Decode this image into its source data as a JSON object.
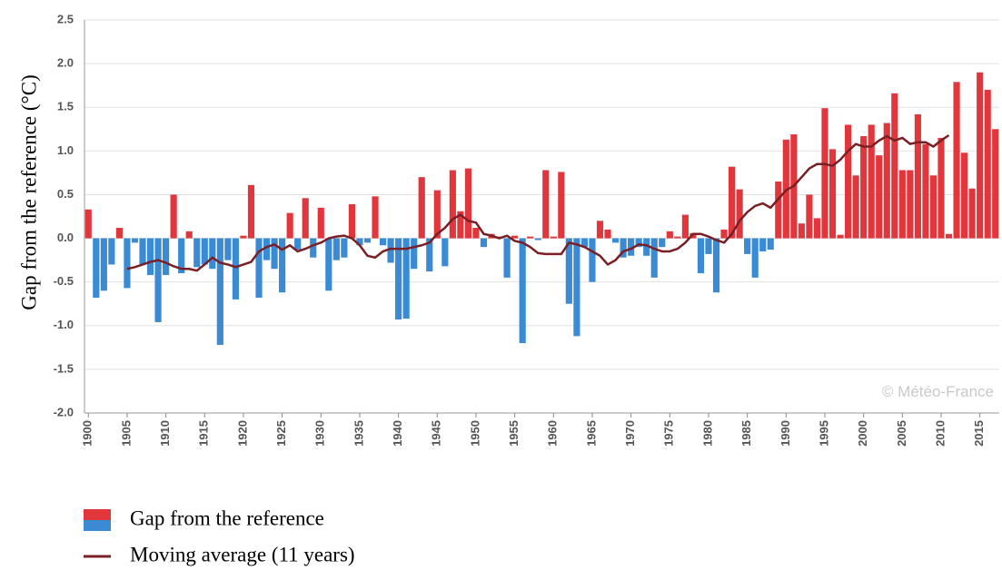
{
  "chart_data": {
    "type": "bar",
    "y_label": "Gap from the reference (°C)",
    "watermark": "© Météo-France",
    "x": [
      1900,
      1901,
      1902,
      1903,
      1904,
      1905,
      1906,
      1907,
      1908,
      1909,
      1910,
      1911,
      1912,
      1913,
      1914,
      1915,
      1916,
      1917,
      1918,
      1919,
      1920,
      1921,
      1922,
      1923,
      1924,
      1925,
      1926,
      1927,
      1928,
      1929,
      1930,
      1931,
      1932,
      1933,
      1934,
      1935,
      1936,
      1937,
      1938,
      1939,
      1940,
      1941,
      1942,
      1943,
      1944,
      1945,
      1946,
      1947,
      1948,
      1949,
      1950,
      1951,
      1952,
      1953,
      1954,
      1955,
      1956,
      1957,
      1958,
      1959,
      1960,
      1961,
      1962,
      1963,
      1964,
      1965,
      1966,
      1967,
      1968,
      1969,
      1970,
      1971,
      1972,
      1973,
      1974,
      1975,
      1976,
      1977,
      1978,
      1979,
      1980,
      1981,
      1982,
      1983,
      1984,
      1985,
      1986,
      1987,
      1988,
      1989,
      1990,
      1991,
      1992,
      1993,
      1994,
      1995,
      1996,
      1997,
      1998,
      1999,
      2000,
      2001,
      2002,
      2003,
      2004,
      2005,
      2006,
      2007,
      2008,
      2009,
      2010,
      2011,
      2012,
      2013,
      2014,
      2015,
      2016,
      2017
    ],
    "series": [
      {
        "name": "Gap from the reference",
        "type": "bar",
        "color": "#e0363c",
        "negative_color": "#3a8ad4",
        "values": [
          0.33,
          -0.68,
          -0.6,
          -0.3,
          0.12,
          -0.57,
          -0.05,
          -0.3,
          -0.42,
          -0.96,
          -0.42,
          0.5,
          -0.4,
          0.08,
          -0.33,
          -0.3,
          -0.35,
          -1.22,
          -0.25,
          -0.7,
          0.03,
          0.61,
          -0.68,
          -0.25,
          -0.35,
          -0.62,
          0.29,
          -0.13,
          0.46,
          -0.22,
          0.35,
          -0.6,
          -0.25,
          -0.22,
          0.39,
          -0.08,
          -0.05,
          0.48,
          -0.08,
          -0.28,
          -0.93,
          -0.92,
          -0.35,
          0.7,
          -0.38,
          0.55,
          -0.32,
          0.78,
          0.31,
          0.8,
          0.12,
          -0.1,
          0.05,
          0.02,
          -0.45,
          0.03,
          -1.2,
          0.02,
          -0.02,
          0.78,
          0.02,
          0.76,
          -0.75,
          -1.12,
          -0.1,
          -0.5,
          0.2,
          0.1,
          -0.05,
          -0.22,
          -0.2,
          -0.1,
          -0.2,
          -0.45,
          -0.1,
          0.08,
          0.02,
          0.27,
          0.06,
          -0.4,
          -0.18,
          -0.62,
          0.1,
          0.82,
          0.56,
          -0.18,
          -0.45,
          -0.15,
          -0.13,
          0.65,
          1.13,
          1.19,
          0.17,
          0.5,
          0.23,
          1.49,
          1.02,
          0.04,
          1.3,
          0.72,
          1.17,
          1.3,
          0.95,
          1.32,
          1.66,
          0.78,
          0.78,
          1.42,
          1.08,
          0.72,
          1.15,
          0.05,
          1.79,
          0.98,
          0.57,
          1.9,
          1.7,
          1.25
        ]
      },
      {
        "name": "Moving average (11 years)",
        "type": "line",
        "color": "#7a1f24",
        "values": [
          null,
          null,
          null,
          null,
          null,
          -0.35,
          -0.33,
          -0.3,
          -0.27,
          -0.25,
          -0.28,
          -0.32,
          -0.35,
          -0.35,
          -0.37,
          -0.3,
          -0.22,
          -0.28,
          -0.3,
          -0.33,
          -0.3,
          -0.27,
          -0.15,
          -0.1,
          -0.07,
          -0.13,
          -0.08,
          -0.15,
          -0.12,
          -0.08,
          -0.05,
          0.0,
          0.02,
          0.03,
          0.0,
          -0.08,
          -0.2,
          -0.22,
          -0.15,
          -0.12,
          -0.12,
          -0.12,
          -0.1,
          -0.08,
          -0.05,
          0.05,
          0.12,
          0.22,
          0.27,
          0.2,
          0.18,
          0.05,
          0.03,
          0.0,
          0.03,
          -0.03,
          -0.05,
          -0.1,
          -0.17,
          -0.18,
          -0.18,
          -0.18,
          -0.05,
          -0.07,
          -0.1,
          -0.15,
          -0.2,
          -0.3,
          -0.25,
          -0.15,
          -0.12,
          -0.07,
          -0.08,
          -0.12,
          -0.15,
          -0.15,
          -0.12,
          -0.05,
          0.05,
          0.05,
          0.02,
          -0.02,
          -0.05,
          0.05,
          0.2,
          0.3,
          0.37,
          0.4,
          0.35,
          0.45,
          0.55,
          0.6,
          0.7,
          0.8,
          0.85,
          0.85,
          0.83,
          0.9,
          1.0,
          1.08,
          1.05,
          1.05,
          1.12,
          1.17,
          1.12,
          1.15,
          1.08,
          1.1,
          1.1,
          1.05,
          1.12,
          1.18,
          null,
          null,
          null,
          null,
          null,
          null
        ]
      }
    ],
    "xlim": [
      1899.5,
      2017.5
    ],
    "xticks": [
      1900,
      1905,
      1910,
      1915,
      1920,
      1925,
      1930,
      1935,
      1940,
      1945,
      1950,
      1955,
      1960,
      1965,
      1970,
      1975,
      1980,
      1985,
      1990,
      1995,
      2000,
      2005,
      2010,
      2015
    ],
    "ylim": [
      -2,
      2.5
    ],
    "yticks": [
      {
        "value": -2,
        "label": "-2.0"
      },
      -1.5,
      {
        "value": -1,
        "label": "-1.0"
      },
      -0.5,
      {
        "value": 0,
        "label": "0.0"
      },
      0.5,
      {
        "value": 1,
        "label": "1.0"
      },
      1.5,
      {
        "value": 2,
        "label": "2.0"
      },
      2.5
    ],
    "grid": true
  }
}
